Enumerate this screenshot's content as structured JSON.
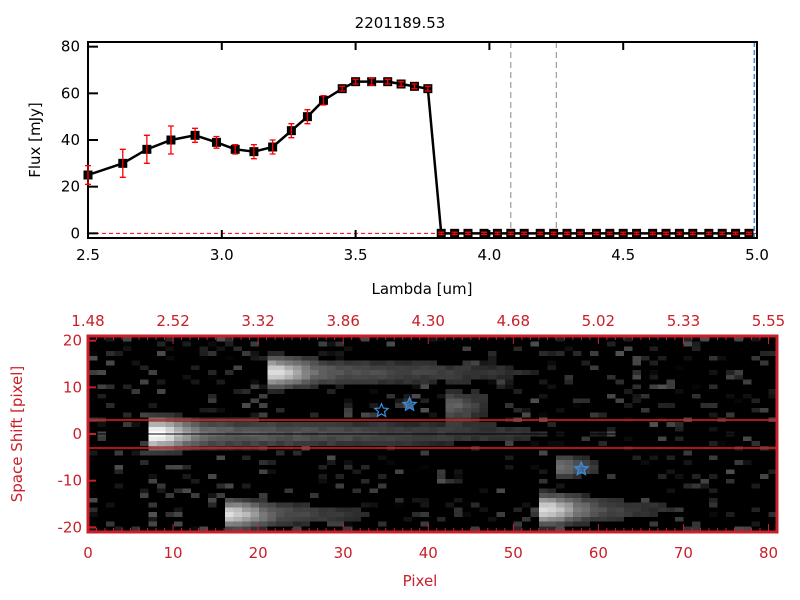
{
  "chart_data": [
    {
      "type": "line",
      "title": "2201189.53",
      "xlabel": "Lambda [um]",
      "ylabel": "Flux [mJy]",
      "xlim": [
        2.5,
        5.0
      ],
      "ylim": [
        -2,
        82
      ],
      "xticks": [
        "2.5",
        "3.0",
        "3.5",
        "4.0",
        "4.5",
        "5.0"
      ],
      "yticks": [
        "0",
        "20",
        "40",
        "60",
        "80"
      ],
      "series": [
        {
          "name": "flux",
          "x": [
            2.5,
            2.63,
            2.72,
            2.81,
            2.9,
            2.98,
            3.05,
            3.12,
            3.19,
            3.26,
            3.32,
            3.38,
            3.45,
            3.5,
            3.56,
            3.62,
            3.67,
            3.72,
            3.77,
            3.82,
            3.87,
            3.92,
            3.98,
            4.03,
            4.08,
            4.13,
            4.19,
            4.24,
            4.29,
            4.34,
            4.4,
            4.45,
            4.5,
            4.55,
            4.61,
            4.66,
            4.71,
            4.76,
            4.82,
            4.87,
            4.92,
            4.97
          ],
          "y": [
            25,
            30,
            36,
            40,
            42,
            39,
            36,
            35,
            37,
            44,
            50,
            57,
            62,
            65,
            65,
            65,
            64,
            63,
            62,
            0,
            0,
            0,
            0,
            0,
            0,
            0,
            0,
            0,
            0,
            0,
            0,
            0,
            0,
            0,
            0,
            0,
            0,
            0,
            0,
            0,
            0,
            0
          ],
          "err": [
            4,
            6,
            6,
            6,
            3,
            2.5,
            2,
            3,
            3,
            3,
            3,
            2,
            1,
            1,
            1.5,
            1,
            1,
            1,
            1,
            0.5,
            0.5,
            0.5,
            0.5,
            0.5,
            0.5,
            0.5,
            0.5,
            0.5,
            0.5,
            0.5,
            0.5,
            0.5,
            0.5,
            0.5,
            0.5,
            0.5,
            0.5,
            0.5,
            0.5,
            0.5,
            0.5,
            0.5
          ]
        }
      ],
      "vlines_gray": [
        4.08,
        4.25
      ],
      "vline_blue": 4.99,
      "hline_red": 0,
      "colors": {
        "line": "#000000",
        "err": "#ff0000",
        "blue": "#3a8ee0"
      }
    },
    {
      "type": "heatmap",
      "xlabel": "Pixel",
      "ylabel": "Space Shift [pixel]",
      "xlim": [
        0,
        81
      ],
      "ylim": [
        -21,
        21
      ],
      "xticks": [
        "0",
        "10",
        "20",
        "30",
        "40",
        "50",
        "60",
        "70",
        "80"
      ],
      "yticks": [
        "-20",
        "-10",
        "0",
        "10",
        "20"
      ],
      "top_ticks": [
        "1.48",
        "2.52",
        "3.32",
        "3.86",
        "4.30",
        "4.68",
        "5.02",
        "5.33",
        "5.55"
      ],
      "extraction_lines": [
        3,
        -3
      ],
      "center_line": 0,
      "stars": [
        {
          "x": 34.5,
          "y": 5,
          "filled": false
        },
        {
          "x": 37.8,
          "y": 6.3,
          "filled": true
        },
        {
          "x": 58,
          "y": -7.5,
          "filled": true
        }
      ],
      "colors": {
        "axis": "#c8202a",
        "star": "#3a8ee0"
      }
    }
  ]
}
